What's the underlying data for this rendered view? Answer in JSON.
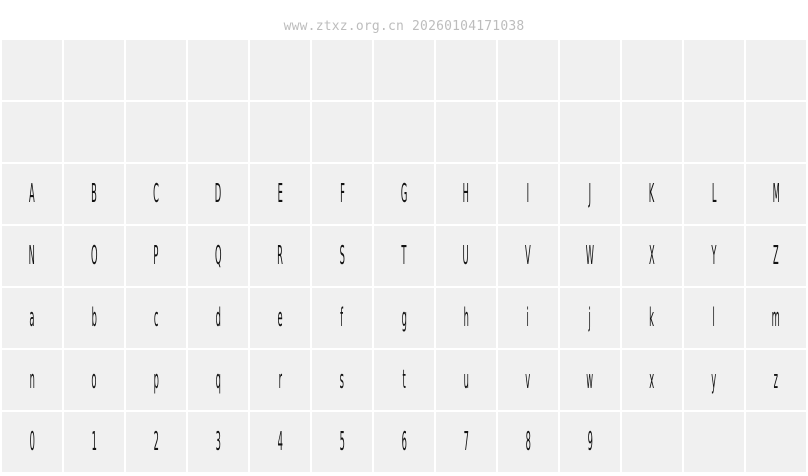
{
  "header": {
    "watermark": "www.ztxz.org.cn 20260104171038"
  },
  "rows": [
    [
      "",
      "",
      "",
      "",
      "",
      "",
      "",
      "",
      "",
      "",
      "",
      "",
      ""
    ],
    [
      "",
      "",
      "",
      "",
      "",
      "",
      "",
      "",
      "",
      "",
      "",
      "",
      ""
    ],
    [
      "A",
      "B",
      "C",
      "D",
      "E",
      "F",
      "G",
      "H",
      "I",
      "J",
      "K",
      "L",
      "M"
    ],
    [
      "N",
      "O",
      "P",
      "Q",
      "R",
      "S",
      "T",
      "U",
      "V",
      "W",
      "X",
      "Y",
      "Z"
    ],
    [
      "a",
      "b",
      "c",
      "d",
      "e",
      "f",
      "g",
      "h",
      "i",
      "j",
      "k",
      "l",
      "m"
    ],
    [
      "n",
      "o",
      "p",
      "q",
      "r",
      "s",
      "t",
      "u",
      "v",
      "w",
      "x",
      "y",
      "z"
    ],
    [
      "0",
      "1",
      "2",
      "3",
      "4",
      "5",
      "6",
      "7",
      "8",
      "9",
      "",
      "",
      ""
    ]
  ]
}
